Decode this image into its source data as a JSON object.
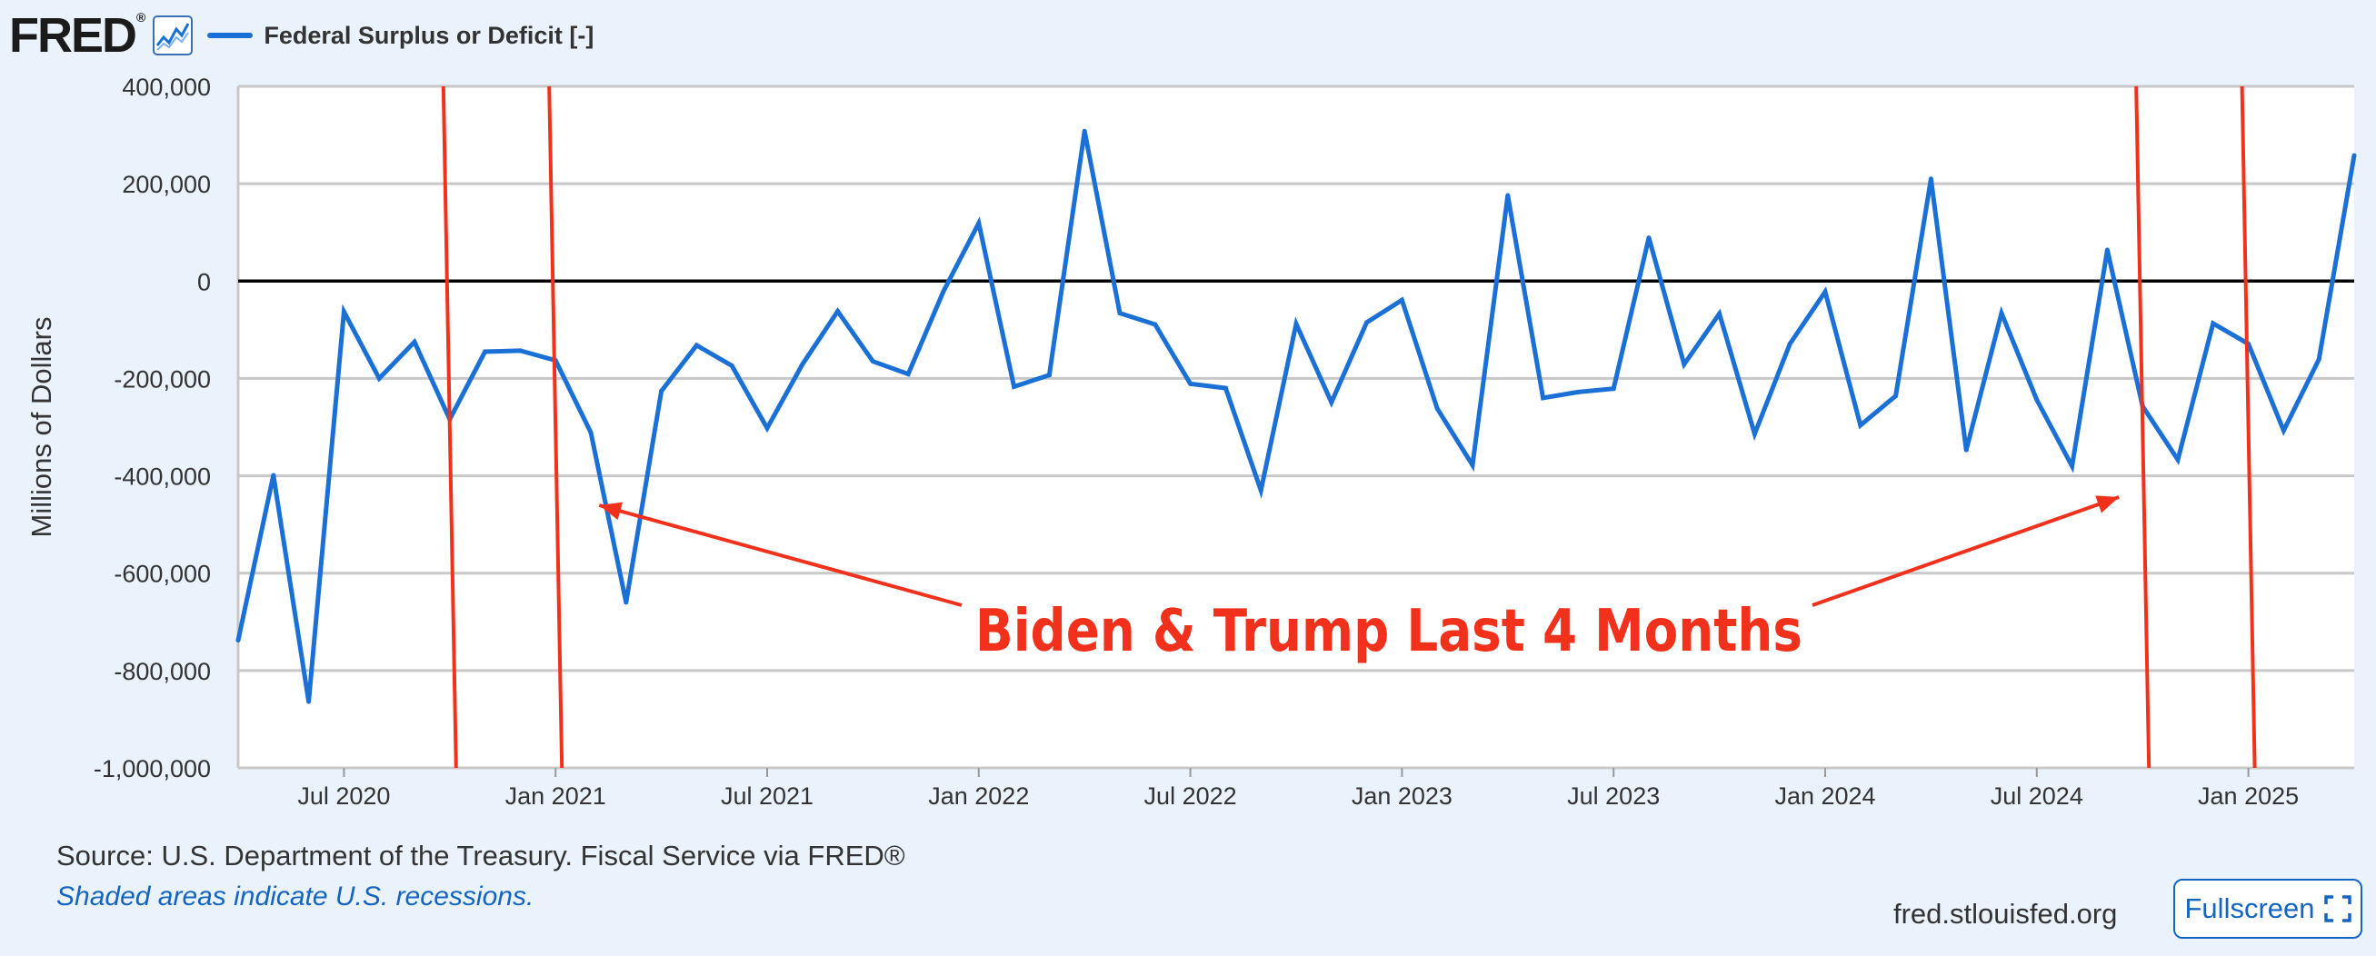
{
  "header": {
    "logo_text": "FRED",
    "logo_mark": "®",
    "logo_icon": "line-graph-icon",
    "legend_label": "Federal Surplus or Deficit [-]"
  },
  "colors": {
    "series": "#1b70d6",
    "annotation": "#f1311b",
    "zero_line": "#000000",
    "grid": "#c8c8c8",
    "background": "#eaf2fb",
    "plot_background": "#ffffff",
    "link": "#1565c0"
  },
  "footer": {
    "source": "Source: U.S. Department of the Treasury. Fiscal Service via FRED®",
    "recession_note": "Shaded areas indicate U.S. recessions.",
    "site": "fred.stlouisfed.org",
    "fullscreen_label": "Fullscreen",
    "fullscreen_icon": "expand-icon"
  },
  "chart_data": {
    "type": "line",
    "ylabel": "Millions of Dollars",
    "ylim": [
      -1000000,
      400000
    ],
    "y_ticks": [
      {
        "value": 400000,
        "label": "400,000"
      },
      {
        "value": 200000,
        "label": "200,000"
      },
      {
        "value": 0,
        "label": "0"
      },
      {
        "value": -200000,
        "label": "-200,000"
      },
      {
        "value": -400000,
        "label": "-400,000"
      },
      {
        "value": -600000,
        "label": "-600,000"
      },
      {
        "value": -800000,
        "label": "-800,000"
      },
      {
        "value": -1000000,
        "label": "-1,000,000"
      }
    ],
    "x_range": [
      "2020-04",
      "2025-04"
    ],
    "x_ticks": [
      {
        "date": "2020-07",
        "label": "Jul 2020"
      },
      {
        "date": "2021-01",
        "label": "Jan 2021"
      },
      {
        "date": "2021-07",
        "label": "Jul 2021"
      },
      {
        "date": "2022-01",
        "label": "Jan 2022"
      },
      {
        "date": "2022-07",
        "label": "Jul 2022"
      },
      {
        "date": "2023-01",
        "label": "Jan 2023"
      },
      {
        "date": "2023-07",
        "label": "Jul 2023"
      },
      {
        "date": "2024-01",
        "label": "Jan 2024"
      },
      {
        "date": "2024-07",
        "label": "Jul 2024"
      },
      {
        "date": "2025-01",
        "label": "Jan 2025"
      }
    ],
    "grid": true,
    "series": [
      {
        "name": "Federal Surplus or Deficit [-]",
        "points": [
          {
            "date": "2020-04",
            "value": -738000
          },
          {
            "date": "2020-05",
            "value": -399000
          },
          {
            "date": "2020-06",
            "value": -864000
          },
          {
            "date": "2020-07",
            "value": -63000
          },
          {
            "date": "2020-08",
            "value": -200000
          },
          {
            "date": "2020-09",
            "value": -125000
          },
          {
            "date": "2020-10",
            "value": -284000
          },
          {
            "date": "2020-11",
            "value": -145000
          },
          {
            "date": "2020-12",
            "value": -143000
          },
          {
            "date": "2021-01",
            "value": -163000
          },
          {
            "date": "2021-02",
            "value": -311000
          },
          {
            "date": "2021-03",
            "value": -660000
          },
          {
            "date": "2021-04",
            "value": -226000
          },
          {
            "date": "2021-05",
            "value": -132000
          },
          {
            "date": "2021-06",
            "value": -174000
          },
          {
            "date": "2021-07",
            "value": -302000
          },
          {
            "date": "2021-08",
            "value": -171000
          },
          {
            "date": "2021-09",
            "value": -62000
          },
          {
            "date": "2021-10",
            "value": -165000
          },
          {
            "date": "2021-11",
            "value": -191000
          },
          {
            "date": "2021-12",
            "value": -21000
          },
          {
            "date": "2022-01",
            "value": 119000
          },
          {
            "date": "2022-02",
            "value": -217000
          },
          {
            "date": "2022-03",
            "value": -193000
          },
          {
            "date": "2022-04",
            "value": 308000
          },
          {
            "date": "2022-05",
            "value": -66000
          },
          {
            "date": "2022-06",
            "value": -89000
          },
          {
            "date": "2022-07",
            "value": -211000
          },
          {
            "date": "2022-08",
            "value": -220000
          },
          {
            "date": "2022-09",
            "value": -430000
          },
          {
            "date": "2022-10",
            "value": -88000
          },
          {
            "date": "2022-11",
            "value": -249000
          },
          {
            "date": "2022-12",
            "value": -85000
          },
          {
            "date": "2023-01",
            "value": -39000
          },
          {
            "date": "2023-02",
            "value": -262000
          },
          {
            "date": "2023-03",
            "value": -378000
          },
          {
            "date": "2023-04",
            "value": 176000
          },
          {
            "date": "2023-05",
            "value": -240000
          },
          {
            "date": "2023-06",
            "value": -228000
          },
          {
            "date": "2023-07",
            "value": -221000
          },
          {
            "date": "2023-08",
            "value": 89000
          },
          {
            "date": "2023-09",
            "value": -171000
          },
          {
            "date": "2023-10",
            "value": -67000
          },
          {
            "date": "2023-11",
            "value": -314000
          },
          {
            "date": "2023-12",
            "value": -129000
          },
          {
            "date": "2024-01",
            "value": -22000
          },
          {
            "date": "2024-02",
            "value": -296000
          },
          {
            "date": "2024-03",
            "value": -236000
          },
          {
            "date": "2024-04",
            "value": 210000
          },
          {
            "date": "2024-05",
            "value": -347000
          },
          {
            "date": "2024-06",
            "value": -66000
          },
          {
            "date": "2024-07",
            "value": -244000
          },
          {
            "date": "2024-08",
            "value": -380000
          },
          {
            "date": "2024-09",
            "value": 64000
          },
          {
            "date": "2024-10",
            "value": -257000
          },
          {
            "date": "2024-11",
            "value": -367000
          },
          {
            "date": "2024-12",
            "value": -87000
          },
          {
            "date": "2025-01",
            "value": -129000
          },
          {
            "date": "2025-02",
            "value": -307000
          },
          {
            "date": "2025-03",
            "value": -161000
          },
          {
            "date": "2025-04",
            "value": 258000
          }
        ]
      }
    ],
    "annotations": {
      "text": "Biden & Trump Last 4 Months",
      "periods": [
        {
          "start": "2020-10",
          "end": "2021-01"
        },
        {
          "start": "2024-10",
          "end": "2025-01"
        }
      ]
    }
  }
}
